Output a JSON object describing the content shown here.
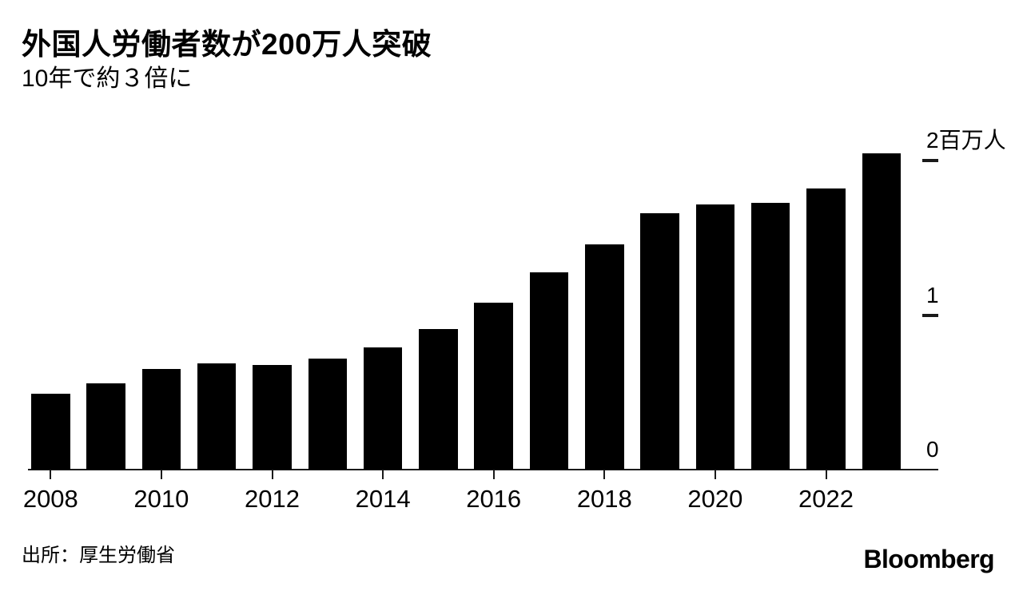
{
  "header": {
    "title": "外国人労働者数が200万人突破",
    "subtitle": "10年で約３倍に"
  },
  "chart_data": {
    "type": "bar",
    "title": "外国人労働者数が200万人突破",
    "subtitle": "10年で約３倍に",
    "x": [
      2008,
      2009,
      2010,
      2011,
      2012,
      2013,
      2014,
      2015,
      2016,
      2017,
      2018,
      2019,
      2020,
      2021,
      2022,
      2023
    ],
    "values": [
      0.49,
      0.56,
      0.65,
      0.69,
      0.68,
      0.72,
      0.79,
      0.91,
      1.08,
      1.28,
      1.46,
      1.66,
      1.72,
      1.73,
      1.82,
      2.05
    ],
    "unit_label": "百万人",
    "ylabel": "",
    "xlabel": "",
    "ylim": [
      0,
      2.06
    ],
    "grid": false,
    "legend": "none",
    "bar_color": "#000000",
    "y_ticks": [
      {
        "value": 0,
        "label": "0",
        "dash": false
      },
      {
        "value": 1,
        "label": "1",
        "dash": true
      },
      {
        "value": 2,
        "label": "2百万人",
        "dash": true
      }
    ],
    "x_tick_years": [
      2008,
      2010,
      2012,
      2014,
      2016,
      2018,
      2020,
      2022
    ]
  },
  "footer": {
    "source": "出所：厚生労働省",
    "brand": "Bloomberg"
  }
}
